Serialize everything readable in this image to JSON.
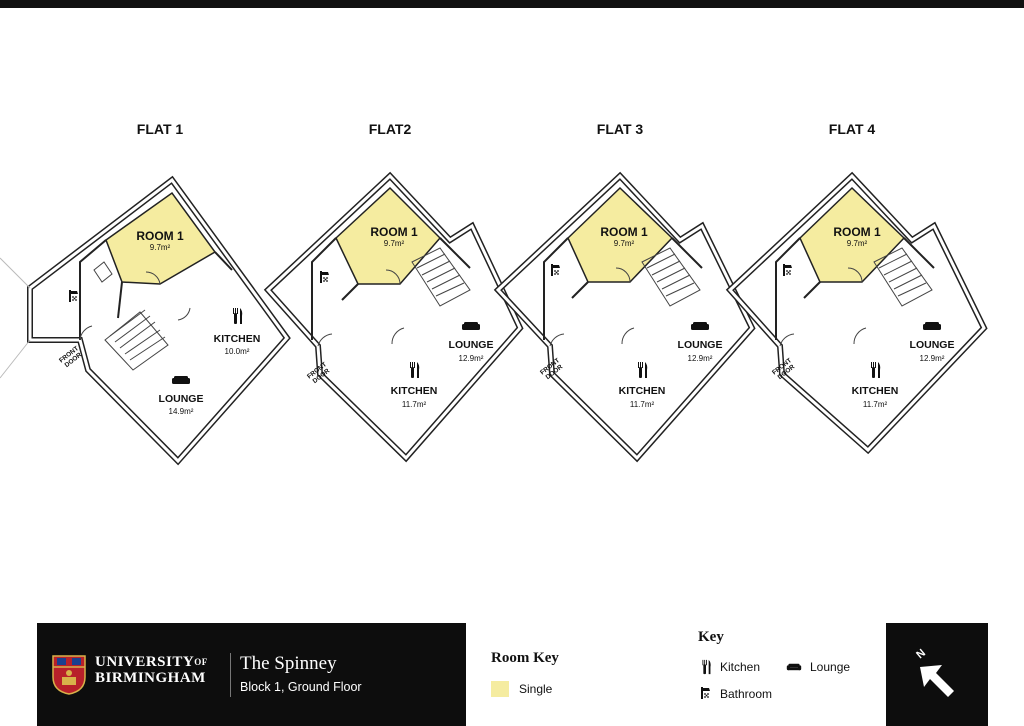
{
  "flats": [
    {
      "title": "FLAT 1",
      "room": {
        "name": "ROOM 1",
        "area": "9.7m²"
      },
      "kitchen": {
        "name": "KITCHEN",
        "area": "10.0m²"
      },
      "lounge": {
        "name": "LOUNGE",
        "area": "14.9m²"
      },
      "front_door": [
        "FRONT",
        "DOOR"
      ]
    },
    {
      "title": "FLAT2",
      "room": {
        "name": "ROOM 1",
        "area": "9.7m²"
      },
      "kitchen": {
        "name": "KITCHEN",
        "area": "11.7m²"
      },
      "lounge": {
        "name": "LOUNGE",
        "area": "12.9m²"
      },
      "front_door": [
        "FRONT",
        "DOOR"
      ]
    },
    {
      "title": "FLAT 3",
      "room": {
        "name": "ROOM 1",
        "area": "9.7m²"
      },
      "kitchen": {
        "name": "KITCHEN",
        "area": "11.7m²"
      },
      "lounge": {
        "name": "LOUNGE",
        "area": "12.9m²"
      },
      "front_door": [
        "FRONT",
        "DOOR"
      ]
    },
    {
      "title": "FLAT 4",
      "room": {
        "name": "ROOM 1",
        "area": "9.7m²"
      },
      "kitchen": {
        "name": "KITCHEN",
        "area": "11.7m²"
      },
      "lounge": {
        "name": "LOUNGE",
        "area": "12.9m²"
      },
      "front_door": [
        "FRONT",
        "DOOR"
      ]
    }
  ],
  "colors": {
    "single_room": "#f5eca0",
    "wall": "#222222",
    "footer_dark": "#0d0d0d"
  },
  "footer": {
    "university": {
      "line1": "UNIVERSITY",
      "of": "OF",
      "line2": "BIRMINGHAM"
    },
    "building": "The Spinney",
    "floor": "Block 1, Ground Floor",
    "room_key": {
      "title": "Room Key",
      "items": [
        {
          "label": "Single"
        }
      ]
    },
    "key": {
      "title": "Key",
      "items": [
        {
          "label": "Kitchen",
          "icon": "cutlery-icon"
        },
        {
          "label": "Lounge",
          "icon": "sofa-icon"
        },
        {
          "label": "Bathroom",
          "icon": "shower-icon"
        }
      ]
    },
    "north_label": "N"
  }
}
